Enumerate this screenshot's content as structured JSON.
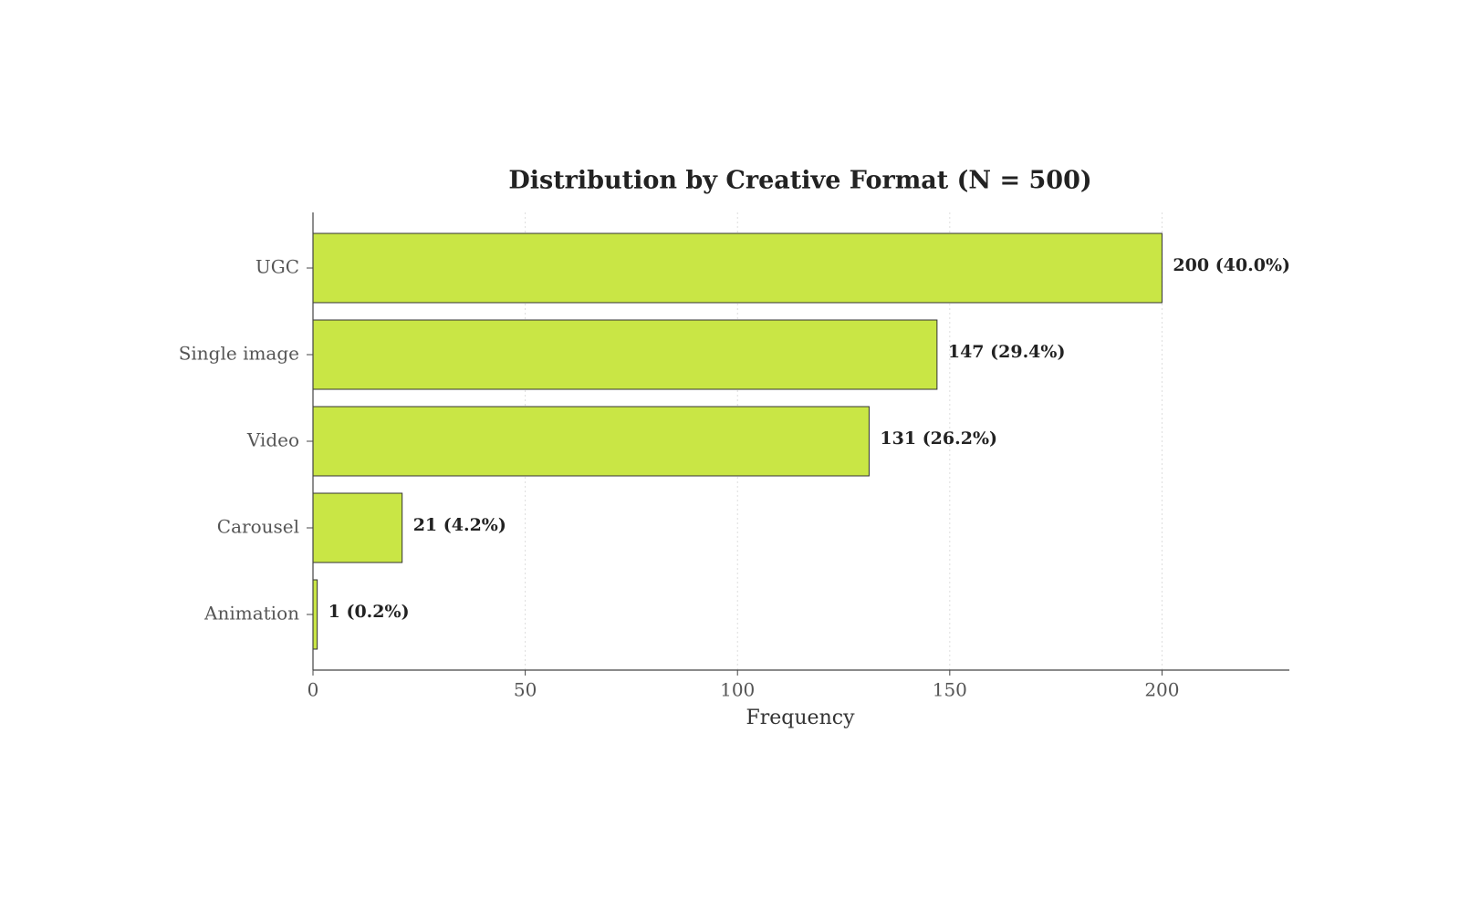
{
  "chart_data": {
    "type": "bar",
    "orientation": "horizontal",
    "title": "Distribution by Creative Format (N = 500)",
    "xlabel": "Frequency",
    "categories": [
      "UGC",
      "Single image",
      "Video",
      "Carousel",
      "Animation"
    ],
    "values": [
      200,
      147,
      131,
      21,
      1
    ],
    "value_labels": [
      "200 (40.0%)",
      "147 (29.4%)",
      "131 (26.2%)",
      "21 (4.2%)",
      "1 (0.2%)"
    ],
    "color": "#c9e645",
    "xlim": [
      0,
      230
    ],
    "xticks": [
      0,
      50,
      100,
      150,
      200
    ],
    "grid": true
  }
}
